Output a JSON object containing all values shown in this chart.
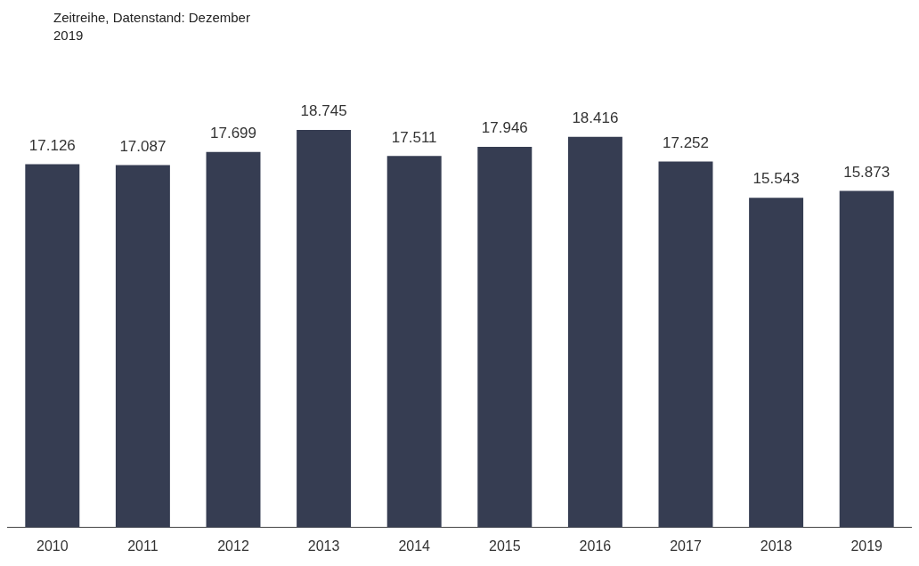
{
  "chart_data": {
    "type": "bar",
    "title": "Zeitreihe, Datenstand: Dezember 2019",
    "categories": [
      "2010",
      "2011",
      "2012",
      "2013",
      "2014",
      "2015",
      "2016",
      "2017",
      "2018",
      "2019"
    ],
    "values": [
      17126,
      17087,
      17699,
      18745,
      17511,
      17946,
      18416,
      17252,
      15543,
      15873
    ],
    "value_labels": [
      "17.126",
      "17.087",
      "17.699",
      "18.745",
      "17.511",
      "17.946",
      "18.416",
      "17.252",
      "15.543",
      "15.873"
    ],
    "color": "#363d52",
    "grid": false,
    "legend": false
  }
}
